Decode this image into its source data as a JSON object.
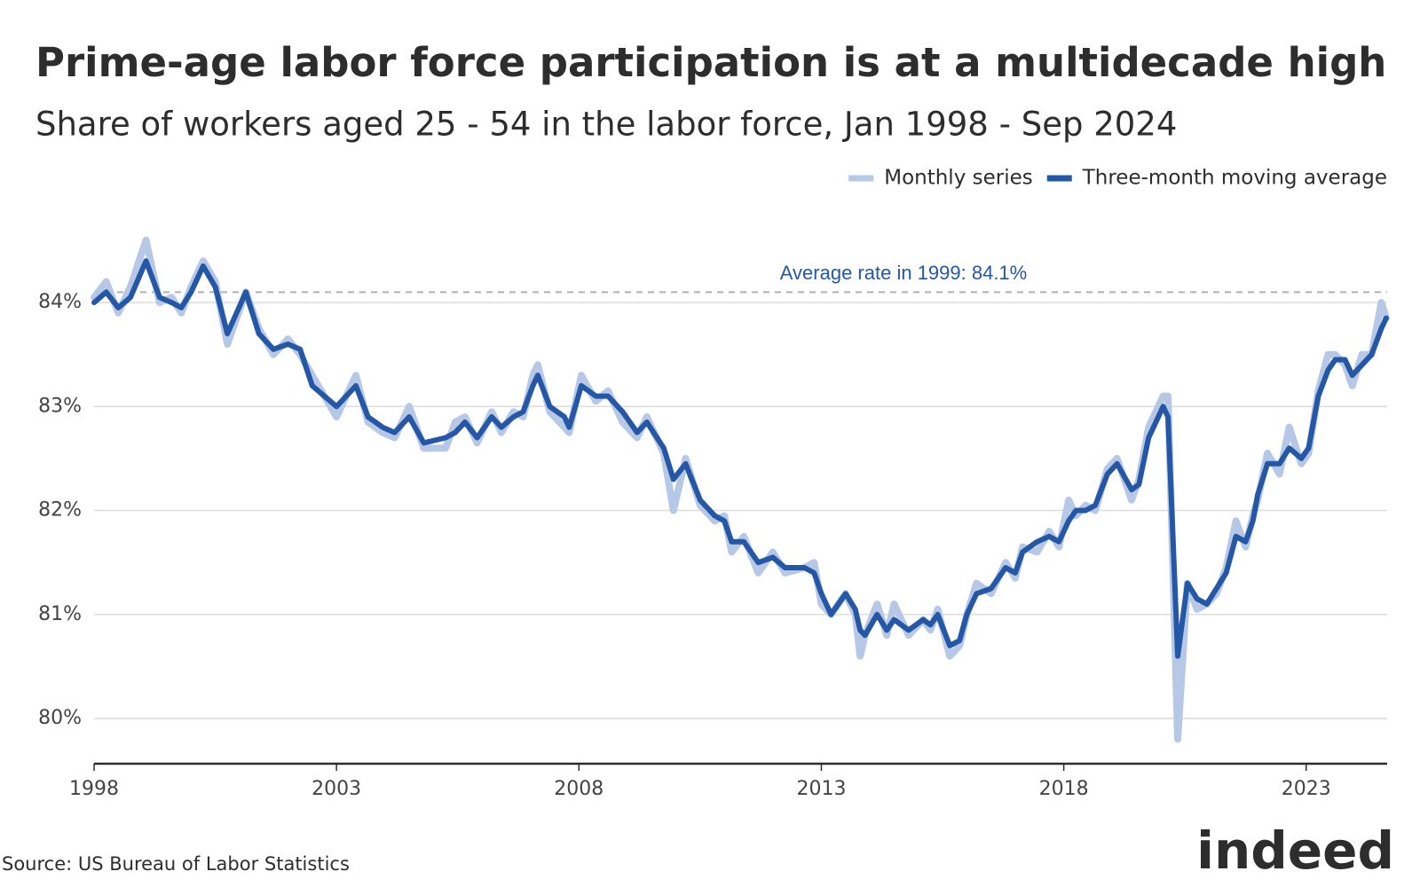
{
  "chart_data": {
    "type": "line",
    "title": "Prime-age labor force participation is at a multidecade high",
    "subtitle": "Share of workers aged 25 - 54 in the labor force, Jan 1998 - Sep 2024",
    "source": "Source: US Bureau of Labor Statistics",
    "logo": "indeed",
    "legend": "top-right",
    "grid": true,
    "xlim": [
      1998,
      2024.67
    ],
    "xticks": [
      1998,
      2003,
      2008,
      2013,
      2018,
      2023
    ],
    "ylim": [
      79.565,
      84.7
    ],
    "yticks": [
      {
        "value": 80,
        "label": "80%"
      },
      {
        "value": 81,
        "label": "81%"
      },
      {
        "value": 82,
        "label": "82%"
      },
      {
        "value": 83,
        "label": "83%"
      },
      {
        "value": 84,
        "label": "84%"
      }
    ],
    "reference_line": {
      "value": 84.1,
      "label": "Average rate in 1999: 84.1%",
      "color": "#b0b0b0",
      "label_color": "#2557a7"
    },
    "x": [
      1998.0,
      1998.25,
      1998.5,
      1998.75,
      1999.07,
      1999.35,
      1999.6,
      1999.8,
      2000.0,
      2000.25,
      2000.5,
      2000.75,
      2001.13,
      2001.4,
      2001.7,
      2002.0,
      2002.25,
      2002.5,
      2003.0,
      2003.4,
      2003.65,
      2003.95,
      2004.2,
      2004.5,
      2004.8,
      2005.25,
      2005.45,
      2005.65,
      2005.9,
      2006.2,
      2006.4,
      2006.65,
      2006.85,
      2007.05,
      2007.15,
      2007.4,
      2007.7,
      2007.8,
      2008.05,
      2008.35,
      2008.6,
      2008.9,
      2009.2,
      2009.4,
      2009.75,
      2009.95,
      2010.2,
      2010.5,
      2010.8,
      2011.0,
      2011.15,
      2011.4,
      2011.7,
      2012.0,
      2012.25,
      2012.65,
      2012.85,
      2013.0,
      2013.2,
      2013.5,
      2013.7,
      2013.8,
      2013.9,
      2014.15,
      2014.35,
      2014.5,
      2014.8,
      2015.1,
      2015.25,
      2015.4,
      2015.65,
      2015.85,
      2016.0,
      2016.2,
      2016.5,
      2016.8,
      2017.0,
      2017.15,
      2017.45,
      2017.7,
      2017.9,
      2018.1,
      2018.25,
      2018.45,
      2018.65,
      2018.9,
      2019.1,
      2019.4,
      2019.55,
      2019.75,
      2020.05,
      2020.15,
      2020.35,
      2020.55,
      2020.75,
      2020.95,
      2021.15,
      2021.35,
      2021.55,
      2021.75,
      2021.9,
      2022.0,
      2022.2,
      2022.45,
      2022.65,
      2022.9,
      2023.05,
      2023.25,
      2023.45,
      2023.6,
      2023.8,
      2023.95,
      2024.15,
      2024.35,
      2024.55,
      2024.65
    ],
    "series": [
      {
        "name": "Monthly series",
        "color": "#b7c8e6",
        "width": 8,
        "values": [
          84.05,
          84.2,
          83.9,
          84.15,
          84.6,
          84.0,
          84.05,
          83.9,
          84.15,
          84.4,
          84.2,
          83.6,
          84.1,
          83.75,
          83.5,
          83.65,
          83.5,
          83.3,
          82.9,
          83.3,
          82.85,
          82.75,
          82.7,
          83.0,
          82.6,
          82.6,
          82.85,
          82.9,
          82.65,
          82.95,
          82.75,
          82.95,
          82.9,
          83.3,
          83.4,
          82.95,
          82.8,
          82.75,
          83.3,
          83.05,
          83.15,
          82.85,
          82.7,
          82.9,
          82.55,
          82.0,
          82.5,
          82.05,
          81.9,
          81.95,
          81.6,
          81.75,
          81.4,
          81.6,
          81.4,
          81.45,
          81.5,
          81.1,
          81.0,
          81.2,
          81.0,
          80.6,
          80.8,
          81.1,
          80.8,
          81.1,
          80.8,
          80.95,
          80.85,
          81.05,
          80.6,
          80.7,
          81.0,
          81.3,
          81.2,
          81.5,
          81.35,
          81.65,
          81.6,
          81.8,
          81.65,
          82.1,
          81.95,
          82.05,
          82.0,
          82.4,
          82.5,
          82.1,
          82.3,
          82.8,
          83.1,
          83.1,
          79.8,
          81.3,
          81.05,
          81.1,
          81.2,
          81.45,
          81.9,
          81.65,
          81.95,
          82.1,
          82.55,
          82.35,
          82.8,
          82.45,
          82.55,
          83.15,
          83.5,
          83.5,
          83.4,
          83.2,
          83.5,
          83.5,
          84.0,
          83.85
        ]
      },
      {
        "name": "Three-month moving average",
        "color": "#2557a7",
        "width": 6,
        "values": [
          84.0,
          84.1,
          83.95,
          84.05,
          84.4,
          84.05,
          84.0,
          83.95,
          84.1,
          84.35,
          84.15,
          83.7,
          84.1,
          83.7,
          83.55,
          83.6,
          83.55,
          83.2,
          83.0,
          83.2,
          82.9,
          82.8,
          82.75,
          82.9,
          82.65,
          82.7,
          82.75,
          82.85,
          82.7,
          82.9,
          82.8,
          82.9,
          82.95,
          83.2,
          83.3,
          83.0,
          82.9,
          82.8,
          83.2,
          83.1,
          83.1,
          82.95,
          82.75,
          82.85,
          82.6,
          82.3,
          82.45,
          82.1,
          81.95,
          81.9,
          81.7,
          81.7,
          81.5,
          81.55,
          81.45,
          81.45,
          81.4,
          81.2,
          81.0,
          81.2,
          81.05,
          80.85,
          80.8,
          81.0,
          80.85,
          80.95,
          80.85,
          80.95,
          80.9,
          81.0,
          80.7,
          80.75,
          81.0,
          81.2,
          81.25,
          81.45,
          81.4,
          81.6,
          81.7,
          81.75,
          81.7,
          81.9,
          82.0,
          82.0,
          82.05,
          82.35,
          82.45,
          82.2,
          82.25,
          82.7,
          83.0,
          82.9,
          80.6,
          81.3,
          81.15,
          81.1,
          81.25,
          81.4,
          81.75,
          81.7,
          81.9,
          82.15,
          82.45,
          82.45,
          82.6,
          82.5,
          82.6,
          83.1,
          83.35,
          83.45,
          83.45,
          83.3,
          83.4,
          83.5,
          83.75,
          83.85
        ]
      }
    ]
  }
}
